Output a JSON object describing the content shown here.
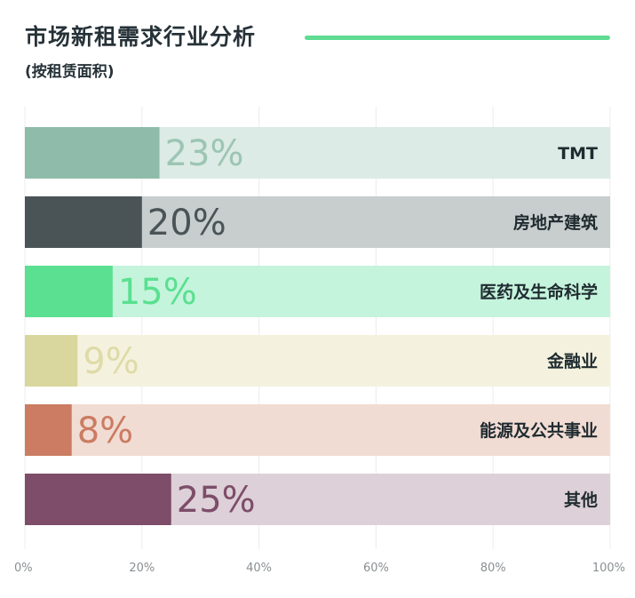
{
  "header": {
    "title": "市场新租需求行业分析",
    "subtitle": "(按租赁面积)"
  },
  "chart_data": {
    "type": "bar",
    "orientation": "horizontal",
    "title": "市场新租需求行业分析",
    "subtitle": "(按租赁面积)",
    "xlim": [
      0,
      100
    ],
    "grid": true,
    "x_ticks": [
      "0%",
      "20%",
      "40%",
      "60%",
      "80%",
      "100%"
    ],
    "categories": [
      "TMT",
      "房地产建筑",
      "医药及生命科学",
      "金融业",
      "能源及公共事业",
      "其他"
    ],
    "values": [
      23,
      20,
      15,
      9,
      8,
      25
    ],
    "value_labels": [
      "23%",
      "20%",
      "15%",
      "9%",
      "8%",
      "25%"
    ],
    "colors": {
      "bars": [
        "#8fbcaa",
        "#4a5457",
        "#5ae090",
        "#d9d69e",
        "#cb7c62",
        "#7d4d69"
      ],
      "tracks": [
        "#dcebe5",
        "#c8cdcd",
        "#c5f4dc",
        "#f4f2de",
        "#f1dcd3",
        "#ddd0d8"
      ],
      "labels": [
        "#9cc5b4",
        "#4a5457",
        "#5ae090",
        "#dedba8",
        "#cb7c62",
        "#7d4d69"
      ],
      "accent": "#5fdc92"
    }
  }
}
